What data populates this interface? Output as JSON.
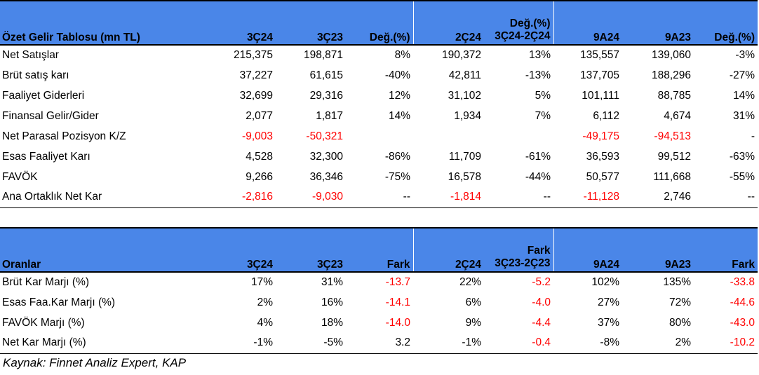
{
  "income_table": {
    "headers": [
      "Özet Gelir Tablosu (mn TL)",
      "3Ç24",
      "3Ç23",
      "Değ.(%)",
      "2Ç24",
      "Değ.(%) 3Ç24-2Ç24",
      "9A24",
      "9A23",
      "Değ.(%)"
    ],
    "header_two_line": {
      "top": "Değ.(%)",
      "bottom": "3Ç24-2Ç24"
    },
    "rows": [
      {
        "label": "Net Satışlar",
        "values": [
          "215,375",
          "198,871",
          "8%",
          "190,372",
          "13%",
          "135,557",
          "139,060",
          "-3%"
        ],
        "neg": [
          false,
          false,
          false,
          false,
          false,
          false,
          false,
          false
        ]
      },
      {
        "label": "Brüt satış karı",
        "values": [
          "37,227",
          "61,615",
          "-40%",
          "42,811",
          "-13%",
          "137,705",
          "188,296",
          "-27%"
        ],
        "neg": [
          false,
          false,
          false,
          false,
          false,
          false,
          false,
          false
        ]
      },
      {
        "label": "Faaliyet Giderleri",
        "values": [
          "32,699",
          "29,316",
          "12%",
          "31,102",
          "5%",
          "101,111",
          "88,785",
          "14%"
        ],
        "neg": [
          false,
          false,
          false,
          false,
          false,
          false,
          false,
          false
        ]
      },
      {
        "label": "Finansal Gelir/Gider",
        "values": [
          "2,077",
          "1,817",
          "14%",
          "1,934",
          "7%",
          "6,112",
          "4,674",
          "31%"
        ],
        "neg": [
          false,
          false,
          false,
          false,
          false,
          false,
          false,
          false
        ]
      },
      {
        "label": "Net Parasal Pozisyon K/Z",
        "values": [
          "-9,003",
          "-50,321",
          "",
          "",
          "",
          "-49,175",
          "-94,513",
          "-"
        ],
        "neg": [
          true,
          true,
          false,
          false,
          false,
          true,
          true,
          false
        ]
      },
      {
        "label": "Esas Faaliyet Karı",
        "values": [
          "4,528",
          "32,300",
          "-86%",
          "11,709",
          "-61%",
          "36,593",
          "99,512",
          "-63%"
        ],
        "neg": [
          false,
          false,
          false,
          false,
          false,
          false,
          false,
          false
        ]
      },
      {
        "label": "FAVÖK",
        "values": [
          "9,266",
          "36,346",
          "-75%",
          "16,578",
          "-44%",
          "50,577",
          "111,668",
          "-55%"
        ],
        "neg": [
          false,
          false,
          false,
          false,
          false,
          false,
          false,
          false
        ]
      },
      {
        "label": "Ana Ortaklık Net Kar",
        "values": [
          "-2,816",
          "-9,030",
          "--",
          "-1,814",
          "--",
          "-11,128",
          "2,746",
          "--"
        ],
        "neg": [
          true,
          true,
          false,
          true,
          false,
          true,
          false,
          false
        ]
      }
    ]
  },
  "ratio_table": {
    "headers": [
      "Oranlar",
      "3Ç24",
      "3Ç23",
      "Fark",
      "2Ç24",
      "Fark 3Ç23-2Ç23",
      "9A24",
      "9A23",
      "Fark"
    ],
    "header_two_line": {
      "top": "Fark",
      "bottom": "3Ç23-2Ç23"
    },
    "rows": [
      {
        "label": "Brüt Kar Marjı (%)",
        "values": [
          "17%",
          "31%",
          "-13.7",
          "22%",
          "-5.2",
          "102%",
          "135%",
          "-33.8"
        ],
        "neg": [
          false,
          false,
          true,
          false,
          true,
          false,
          false,
          true
        ]
      },
      {
        "label": "Esas Faa.Kar Marjı (%)",
        "values": [
          "2%",
          "16%",
          "-14.1",
          "6%",
          "-4.0",
          "27%",
          "72%",
          "-44.6"
        ],
        "neg": [
          false,
          false,
          true,
          false,
          true,
          false,
          false,
          true
        ]
      },
      {
        "label": "FAVÖK Marjı (%)",
        "values": [
          "4%",
          "18%",
          "-14.0",
          "9%",
          "-4.4",
          "37%",
          "80%",
          "-43.0"
        ],
        "neg": [
          false,
          false,
          true,
          false,
          true,
          false,
          false,
          true
        ]
      },
      {
        "label": "Net Kar Marjı (%)",
        "values": [
          "-1%",
          "-5%",
          "3.2",
          "-1%",
          "-0.4",
          "-8%",
          "2%",
          "-10.2"
        ],
        "neg": [
          false,
          false,
          false,
          false,
          true,
          false,
          false,
          true
        ]
      }
    ]
  },
  "source": "Kaynak: Finnet Analiz Expert, KAP",
  "colors": {
    "header_bg": "#4a86e8",
    "negative": "#ff0000"
  }
}
